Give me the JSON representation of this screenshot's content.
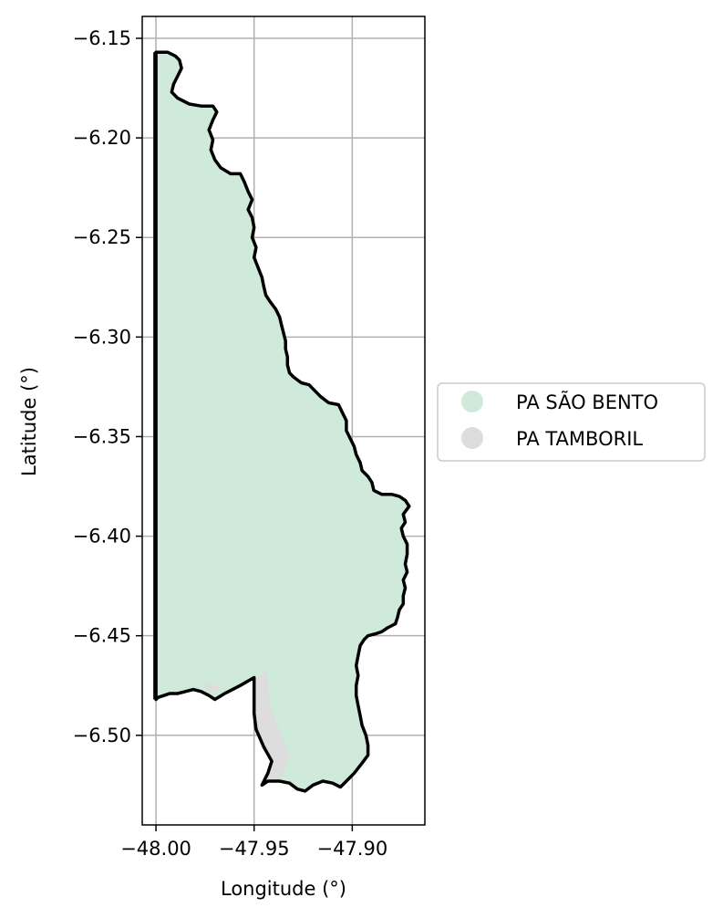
{
  "map": {
    "xlabel": "Longitude (°)",
    "ylabel": "Latitude (°)",
    "x_ticks": [
      {
        "value": -48.0,
        "label": "−48.00"
      },
      {
        "value": -47.95,
        "label": "−47.95"
      },
      {
        "value": -47.9,
        "label": "−47.90"
      }
    ],
    "y_ticks": [
      {
        "value": -6.15,
        "label": "−6.15"
      },
      {
        "value": -6.2,
        "label": "−6.20"
      },
      {
        "value": -6.25,
        "label": "−6.25"
      },
      {
        "value": -6.3,
        "label": "−6.30"
      },
      {
        "value": -6.35,
        "label": "−6.35"
      },
      {
        "value": -6.4,
        "label": "−6.40"
      },
      {
        "value": -6.45,
        "label": "−6.45"
      },
      {
        "value": -6.5,
        "label": "−6.50"
      }
    ],
    "xlim": [
      -48.007,
      -47.863
    ],
    "ylim": [
      -6.545,
      -6.139
    ],
    "grid": true,
    "legend_position": "outside-right",
    "legend": [
      {
        "label": "PA SÃO BENTO",
        "color": "#cfeadb"
      },
      {
        "label": "PA TAMBORIL",
        "color": "#dddddd"
      }
    ],
    "regions": {
      "sao_bento": {
        "name": "PA SÃO BENTO",
        "fill": "#cfeadb",
        "outline": "#000000",
        "coords": [
          [
            -48.0,
            -6.157
          ],
          [
            -47.994,
            -6.157
          ],
          [
            -47.99,
            -6.159
          ],
          [
            -47.988,
            -6.161
          ],
          [
            -47.987,
            -6.165
          ],
          [
            -47.989,
            -6.169
          ],
          [
            -47.991,
            -6.173
          ],
          [
            -47.992,
            -6.177
          ],
          [
            -47.989,
            -6.18
          ],
          [
            -47.983,
            -6.183
          ],
          [
            -47.977,
            -6.184
          ],
          [
            -47.971,
            -6.184
          ],
          [
            -47.969,
            -6.187
          ],
          [
            -47.971,
            -6.191
          ],
          [
            -47.973,
            -6.196
          ],
          [
            -47.971,
            -6.201
          ],
          [
            -47.972,
            -6.206
          ],
          [
            -47.97,
            -6.211
          ],
          [
            -47.967,
            -6.215
          ],
          [
            -47.962,
            -6.218
          ],
          [
            -47.957,
            -6.218
          ],
          [
            -47.955,
            -6.222
          ],
          [
            -47.953,
            -6.227
          ],
          [
            -47.951,
            -6.231
          ],
          [
            -47.953,
            -6.236
          ],
          [
            -47.951,
            -6.24
          ],
          [
            -47.95,
            -6.245
          ],
          [
            -47.951,
            -6.25
          ],
          [
            -47.949,
            -6.255
          ],
          [
            -47.95,
            -6.26
          ],
          [
            -47.948,
            -6.265
          ],
          [
            -47.946,
            -6.27
          ],
          [
            -47.945,
            -6.275
          ],
          [
            -47.944,
            -6.279
          ],
          [
            -47.942,
            -6.282
          ],
          [
            -47.939,
            -6.286
          ],
          [
            -47.937,
            -6.29
          ],
          [
            -47.936,
            -6.294
          ],
          [
            -47.935,
            -6.298
          ],
          [
            -47.934,
            -6.302
          ],
          [
            -47.934,
            -6.306
          ],
          [
            -47.933,
            -6.31
          ],
          [
            -47.933,
            -6.314
          ],
          [
            -47.932,
            -6.318
          ],
          [
            -47.93,
            -6.32
          ],
          [
            -47.926,
            -6.323
          ],
          [
            -47.922,
            -6.324
          ],
          [
            -47.919,
            -6.327
          ],
          [
            -47.916,
            -6.33
          ],
          [
            -47.912,
            -6.333
          ],
          [
            -47.907,
            -6.334
          ],
          [
            -47.905,
            -6.338
          ],
          [
            -47.903,
            -6.342
          ],
          [
            -47.903,
            -6.347
          ],
          [
            -47.901,
            -6.351
          ],
          [
            -47.899,
            -6.355
          ],
          [
            -47.898,
            -6.359
          ],
          [
            -47.896,
            -6.363
          ],
          [
            -47.895,
            -6.367
          ],
          [
            -47.892,
            -6.37
          ],
          [
            -47.89,
            -6.373
          ],
          [
            -47.889,
            -6.377
          ],
          [
            -47.885,
            -6.379
          ],
          [
            -47.88,
            -6.379
          ],
          [
            -47.876,
            -6.38
          ],
          [
            -47.873,
            -6.382
          ],
          [
            -47.871,
            -6.385
          ],
          [
            -47.874,
            -6.389
          ],
          [
            -47.873,
            -6.393
          ],
          [
            -47.875,
            -6.396
          ],
          [
            -47.874,
            -6.4
          ],
          [
            -47.872,
            -6.404
          ],
          [
            -47.872,
            -6.409
          ],
          [
            -47.873,
            -6.414
          ],
          [
            -47.872,
            -6.418
          ],
          [
            -47.874,
            -6.422
          ],
          [
            -47.873,
            -6.426
          ],
          [
            -47.874,
            -6.43
          ],
          [
            -47.874,
            -6.434
          ],
          [
            -47.876,
            -6.437
          ],
          [
            -47.877,
            -6.441
          ],
          [
            -47.878,
            -6.444
          ],
          [
            -47.882,
            -6.446
          ],
          [
            -47.885,
            -6.448
          ],
          [
            -47.888,
            -6.449
          ],
          [
            -47.892,
            -6.45
          ],
          [
            -47.894,
            -6.452
          ],
          [
            -47.896,
            -6.455
          ],
          [
            -47.897,
            -6.46
          ],
          [
            -47.898,
            -6.465
          ],
          [
            -47.897,
            -6.47
          ],
          [
            -47.898,
            -6.475
          ],
          [
            -47.898,
            -6.48
          ],
          [
            -47.897,
            -6.485
          ],
          [
            -47.896,
            -6.49
          ],
          [
            -47.895,
            -6.495
          ],
          [
            -47.893,
            -6.5
          ],
          [
            -47.892,
            -6.505
          ],
          [
            -47.892,
            -6.51
          ],
          [
            -47.895,
            -6.514
          ],
          [
            -47.899,
            -6.519
          ],
          [
            -47.903,
            -6.523
          ],
          [
            -47.906,
            -6.526
          ],
          [
            -47.91,
            -6.524
          ],
          [
            -47.915,
            -6.523
          ],
          [
            -47.92,
            -6.525
          ],
          [
            -47.924,
            -6.528
          ],
          [
            -47.928,
            -6.527
          ],
          [
            -47.932,
            -6.524
          ],
          [
            -47.937,
            -6.523
          ],
          [
            -47.943,
            -6.523
          ],
          [
            -47.946,
            -6.525
          ],
          [
            -47.943,
            -6.519
          ],
          [
            -47.941,
            -6.513
          ],
          [
            -47.945,
            -6.506
          ],
          [
            -47.949,
            -6.497
          ],
          [
            -47.95,
            -6.489
          ],
          [
            -47.95,
            -6.471
          ],
          [
            -47.957,
            -6.475
          ],
          [
            -47.965,
            -6.479
          ],
          [
            -47.97,
            -6.482
          ],
          [
            -47.973,
            -6.48
          ],
          [
            -47.977,
            -6.478
          ],
          [
            -47.981,
            -6.477
          ],
          [
            -47.985,
            -6.478
          ],
          [
            -47.989,
            -6.479
          ],
          [
            -47.993,
            -6.479
          ],
          [
            -47.996,
            -6.48
          ],
          [
            -47.999,
            -6.481
          ],
          [
            -48.0,
            -6.482
          ]
        ]
      },
      "tamboril": {
        "name": "PA TAMBORIL",
        "fill": "#dddddd",
        "coords": [
          [
            -47.95,
            -6.471
          ],
          [
            -47.943,
            -6.468
          ],
          [
            -47.942,
            -6.485
          ],
          [
            -47.936,
            -6.5
          ],
          [
            -47.932,
            -6.51
          ],
          [
            -47.935,
            -6.52
          ],
          [
            -47.94,
            -6.524
          ],
          [
            -47.943,
            -6.519
          ],
          [
            -47.941,
            -6.513
          ],
          [
            -47.945,
            -6.506
          ],
          [
            -47.949,
            -6.497
          ],
          [
            -47.95,
            -6.489
          ]
        ],
        "secondary_coords": [
          [
            -47.967,
            -6.476
          ],
          [
            -47.972,
            -6.474
          ],
          [
            -47.976,
            -6.475
          ],
          [
            -47.973,
            -6.478
          ],
          [
            -47.969,
            -6.478
          ]
        ]
      },
      "west_boundary_line": {
        "coords": [
          [
            -48.001,
            -6.157
          ],
          [
            -48.001,
            -6.482
          ]
        ]
      }
    }
  }
}
